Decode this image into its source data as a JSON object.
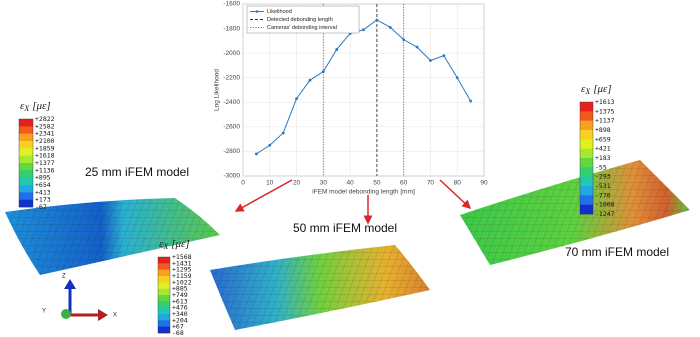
{
  "chart_data": {
    "type": "line",
    "xlabel": "iFEM model debonding length [mm]",
    "ylabel": "Log Likelihood",
    "xlim": [
      0,
      90
    ],
    "xticks": [
      0,
      10,
      20,
      30,
      40,
      50,
      60,
      70,
      80,
      90
    ],
    "ylim": [
      -3000,
      -1600
    ],
    "yticks": [
      -3000,
      -2800,
      -2600,
      -2400,
      -2200,
      -2000,
      -1800,
      -1600
    ],
    "grid": true,
    "legend": "upper-left",
    "x": [
      5,
      10,
      15,
      20,
      25,
      30,
      35,
      40,
      45,
      50,
      55,
      60,
      65,
      70,
      75,
      80,
      85
    ],
    "series": [
      {
        "name": "Likelihood",
        "color": "#2e78c0",
        "values": [
          -2820,
          -2750,
          -2650,
          -2370,
          -2220,
          -2150,
          -1970,
          -1840,
          -1810,
          -1730,
          -1790,
          -1890,
          -1950,
          -2060,
          -2020,
          -2200,
          -2390
        ]
      }
    ],
    "reference_lines": [
      {
        "name": "Detected debonding length",
        "color": "#333333",
        "style": "dashed",
        "x": [
          50
        ]
      },
      {
        "name": "Cameras' debonding interval",
        "color": "#e0403a",
        "style": "dotted",
        "x": [
          30,
          60
        ]
      }
    ]
  },
  "models": [
    {
      "label": "25 mm iFEM model",
      "colorbar": {
        "symbol": "ε",
        "subscript": "X",
        "unit": "[με]",
        "labels": [
          "+2822",
          "+2582",
          "+2341",
          "+2100",
          "+1859",
          "+1618",
          "+1377",
          "+1136",
          "+895",
          "+654",
          "+413",
          "+173",
          "-67"
        ]
      }
    },
    {
      "label": "50 mm iFEM model",
      "colorbar": {
        "symbol": "ε",
        "subscript": "X",
        "unit": "[με]",
        "labels": [
          "+1568",
          "+1431",
          "+1295",
          "+1159",
          "+1022",
          "+885",
          "+749",
          "+613",
          "+476",
          "+340",
          "+204",
          "+67",
          "-68"
        ]
      }
    },
    {
      "label": "70 mm iFEM model",
      "colorbar": {
        "symbol": "ε",
        "subscript": "X",
        "unit": "[με]",
        "labels": [
          "+1613",
          "+1375",
          "+1137",
          "+898",
          "+659",
          "+421",
          "+183",
          "-55",
          "-293",
          "-531",
          "-770",
          "-1008",
          "-1247"
        ]
      }
    }
  ],
  "triad": {
    "z": "Z",
    "y": "Y",
    "x": "X"
  }
}
